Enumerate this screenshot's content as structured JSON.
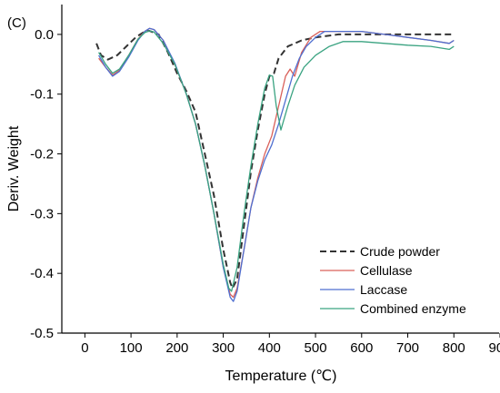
{
  "chart_data": {
    "type": "line",
    "panel_label": "(C)",
    "title": "",
    "xlabel": "Temperature (℃)",
    "ylabel": "Deriv. Weight",
    "xlim": [
      -50,
      900
    ],
    "ylim": [
      -0.5,
      0.05
    ],
    "xticks": [
      0,
      100,
      200,
      300,
      400,
      500,
      600,
      700,
      800,
      900
    ],
    "yticks": [
      0.0,
      -0.1,
      -0.2,
      -0.3,
      -0.4,
      -0.5
    ],
    "xtick_labels": [
      "0",
      "100",
      "200",
      "300",
      "400",
      "500",
      "600",
      "700",
      "800",
      "900"
    ],
    "ytick_labels": [
      "0.0",
      "-0.1",
      "-0.2",
      "-0.3",
      "-0.4",
      "-0.5"
    ],
    "grid": false,
    "legend_position": "bottom-right",
    "series": [
      {
        "name": "Crude powder",
        "color": "#333333",
        "dash": "dashed",
        "points": [
          [
            25,
            -0.015
          ],
          [
            35,
            -0.035
          ],
          [
            50,
            -0.042
          ],
          [
            70,
            -0.035
          ],
          [
            90,
            -0.02
          ],
          [
            110,
            -0.005
          ],
          [
            130,
            0.005
          ],
          [
            140,
            0.006
          ],
          [
            160,
            0.0
          ],
          [
            180,
            -0.03
          ],
          [
            200,
            -0.065
          ],
          [
            220,
            -0.095
          ],
          [
            240,
            -0.13
          ],
          [
            260,
            -0.2
          ],
          [
            280,
            -0.27
          ],
          [
            300,
            -0.36
          ],
          [
            315,
            -0.415
          ],
          [
            320,
            -0.425
          ],
          [
            330,
            -0.41
          ],
          [
            345,
            -0.32
          ],
          [
            360,
            -0.23
          ],
          [
            375,
            -0.16
          ],
          [
            390,
            -0.1
          ],
          [
            400,
            -0.07
          ],
          [
            410,
            -0.065
          ],
          [
            420,
            -0.04
          ],
          [
            440,
            -0.02
          ],
          [
            470,
            -0.01
          ],
          [
            500,
            -0.005
          ],
          [
            550,
            0.0
          ],
          [
            600,
            0.0
          ],
          [
            650,
            0.0
          ],
          [
            700,
            0.0
          ],
          [
            750,
            0.0
          ],
          [
            800,
            0.0
          ]
        ]
      },
      {
        "name": "Cellulase",
        "color": "#d9605a",
        "dash": "solid",
        "points": [
          [
            30,
            -0.04
          ],
          [
            45,
            -0.055
          ],
          [
            60,
            -0.068
          ],
          [
            75,
            -0.06
          ],
          [
            95,
            -0.035
          ],
          [
            115,
            -0.008
          ],
          [
            130,
            0.005
          ],
          [
            140,
            0.01
          ],
          [
            150,
            0.008
          ],
          [
            170,
            -0.01
          ],
          [
            195,
            -0.05
          ],
          [
            220,
            -0.1
          ],
          [
            240,
            -0.15
          ],
          [
            260,
            -0.22
          ],
          [
            280,
            -0.3
          ],
          [
            300,
            -0.39
          ],
          [
            315,
            -0.435
          ],
          [
            322,
            -0.44
          ],
          [
            330,
            -0.425
          ],
          [
            345,
            -0.36
          ],
          [
            360,
            -0.29
          ],
          [
            375,
            -0.24
          ],
          [
            390,
            -0.2
          ],
          [
            405,
            -0.17
          ],
          [
            420,
            -0.12
          ],
          [
            435,
            -0.07
          ],
          [
            445,
            -0.058
          ],
          [
            455,
            -0.07
          ],
          [
            470,
            -0.03
          ],
          [
            490,
            -0.005
          ],
          [
            510,
            0.005
          ],
          [
            550,
            0.005
          ],
          [
            600,
            0.005
          ],
          [
            650,
            0.0
          ],
          [
            700,
            -0.005
          ],
          [
            750,
            -0.01
          ],
          [
            790,
            -0.015
          ],
          [
            800,
            -0.01
          ]
        ]
      },
      {
        "name": "Laccase",
        "color": "#4f6fd0",
        "dash": "solid",
        "points": [
          [
            30,
            -0.035
          ],
          [
            45,
            -0.055
          ],
          [
            60,
            -0.07
          ],
          [
            75,
            -0.062
          ],
          [
            95,
            -0.038
          ],
          [
            115,
            -0.01
          ],
          [
            130,
            0.005
          ],
          [
            140,
            0.01
          ],
          [
            150,
            0.008
          ],
          [
            170,
            -0.01
          ],
          [
            195,
            -0.048
          ],
          [
            220,
            -0.1
          ],
          [
            240,
            -0.15
          ],
          [
            260,
            -0.22
          ],
          [
            280,
            -0.3
          ],
          [
            300,
            -0.39
          ],
          [
            315,
            -0.44
          ],
          [
            322,
            -0.447
          ],
          [
            330,
            -0.43
          ],
          [
            345,
            -0.36
          ],
          [
            360,
            -0.29
          ],
          [
            375,
            -0.245
          ],
          [
            390,
            -0.21
          ],
          [
            405,
            -0.185
          ],
          [
            420,
            -0.15
          ],
          [
            435,
            -0.11
          ],
          [
            450,
            -0.07
          ],
          [
            465,
            -0.04
          ],
          [
            480,
            -0.02
          ],
          [
            500,
            -0.005
          ],
          [
            520,
            0.005
          ],
          [
            550,
            0.005
          ],
          [
            600,
            0.005
          ],
          [
            650,
            0.0
          ],
          [
            700,
            -0.005
          ],
          [
            750,
            -0.01
          ],
          [
            790,
            -0.015
          ],
          [
            800,
            -0.01
          ]
        ]
      },
      {
        "name": "Combined enzyme",
        "color": "#3aa381",
        "dash": "solid",
        "points": [
          [
            30,
            -0.03
          ],
          [
            45,
            -0.05
          ],
          [
            60,
            -0.065
          ],
          [
            75,
            -0.058
          ],
          [
            95,
            -0.035
          ],
          [
            115,
            -0.008
          ],
          [
            130,
            0.003
          ],
          [
            140,
            0.006
          ],
          [
            150,
            0.004
          ],
          [
            170,
            -0.015
          ],
          [
            195,
            -0.05
          ],
          [
            220,
            -0.1
          ],
          [
            240,
            -0.15
          ],
          [
            260,
            -0.22
          ],
          [
            280,
            -0.3
          ],
          [
            300,
            -0.385
          ],
          [
            312,
            -0.425
          ],
          [
            318,
            -0.43
          ],
          [
            330,
            -0.39
          ],
          [
            345,
            -0.3
          ],
          [
            360,
            -0.22
          ],
          [
            375,
            -0.15
          ],
          [
            390,
            -0.09
          ],
          [
            400,
            -0.068
          ],
          [
            407,
            -0.07
          ],
          [
            415,
            -0.12
          ],
          [
            425,
            -0.16
          ],
          [
            440,
            -0.12
          ],
          [
            455,
            -0.085
          ],
          [
            475,
            -0.055
          ],
          [
            500,
            -0.035
          ],
          [
            530,
            -0.02
          ],
          [
            560,
            -0.012
          ],
          [
            600,
            -0.012
          ],
          [
            650,
            -0.015
          ],
          [
            700,
            -0.018
          ],
          [
            750,
            -0.02
          ],
          [
            790,
            -0.025
          ],
          [
            800,
            -0.02
          ]
        ]
      }
    ]
  }
}
